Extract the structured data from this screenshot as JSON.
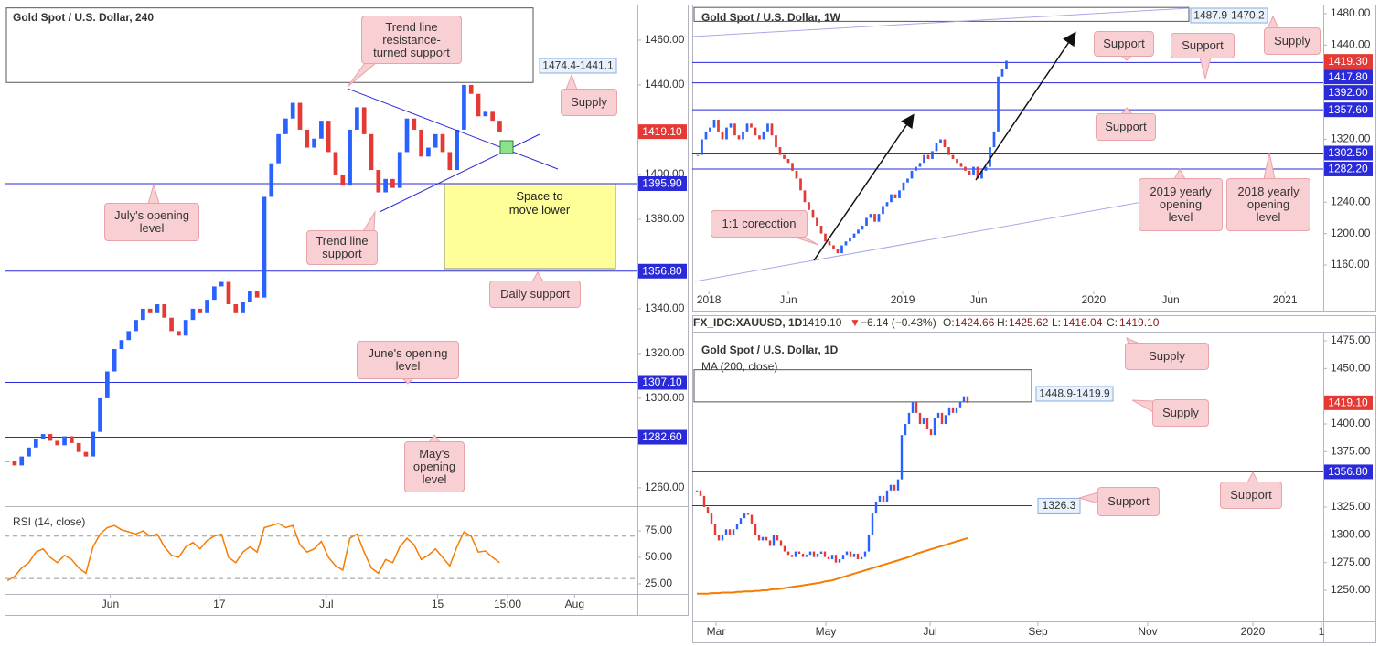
{
  "chart_data": [
    {
      "type": "candlestick",
      "title": "Gold Spot / U.S. Dollar, 240",
      "values": [
        1272,
        1270,
        1274,
        1278,
        1282,
        1284,
        1281,
        1279,
        1283,
        1280,
        1276,
        1274,
        1285,
        1300,
        1312,
        1322,
        1326,
        1330,
        1335,
        1340,
        1338,
        1342,
        1336,
        1330,
        1328,
        1335,
        1340,
        1338,
        1344,
        1350,
        1352,
        1342,
        1338,
        1343,
        1348,
        1345,
        1390,
        1405,
        1418,
        1425,
        1432,
        1420,
        1412,
        1416,
        1424,
        1410,
        1400,
        1395,
        1420,
        1430,
        1418,
        1402,
        1392,
        1398,
        1394,
        1410,
        1425,
        1420,
        1408,
        1412,
        1418,
        1410,
        1402,
        1420,
        1440,
        1436,
        1426,
        1428,
        1424,
        1419
      ],
      "up_color": "#2962ff",
      "down_color": "#e53935",
      "ylim": [
        1252.2,
        1475.9
      ],
      "yticks": [
        {
          "value": 1460,
          "label": "1460.00"
        },
        {
          "value": 1440,
          "label": "1440.00"
        },
        {
          "value": 1400,
          "label": "1400.00"
        },
        {
          "value": 1380,
          "label": "1380.00"
        },
        {
          "value": 1340,
          "label": "1340.00"
        },
        {
          "value": 1320,
          "label": "1320.00"
        },
        {
          "value": 1300,
          "label": "1300.00"
        },
        {
          "value": 1260,
          "label": "1260.00"
        }
      ],
      "xlim": [
        -0.4,
        88.3
      ],
      "xticks": [
        {
          "value": 14.4,
          "label": "Jun"
        },
        {
          "value": 29.7,
          "label": "17"
        },
        {
          "value": 44.7,
          "label": "Jul"
        },
        {
          "value": 60.3,
          "label": "15"
        },
        {
          "value": 70.1,
          "label": "15:00"
        },
        {
          "value": 79.5,
          "label": "Aug"
        }
      ],
      "level_color": "#2a2ad8",
      "levels": [
        {
          "value": 1395.9,
          "label": "1395.90"
        },
        {
          "value": 1356.8,
          "label": "1356.80"
        },
        {
          "value": 1307.1,
          "label": "1307.10"
        },
        {
          "value": 1282.6,
          "label": "1282.60"
        }
      ],
      "last_price": {
        "value": 1419.1,
        "label": "1419.10"
      },
      "zones": [
        {
          "high": 1474.4,
          "low": 1441.1,
          "label": "1474.4-1441.1"
        }
      ],
      "annotations": [
        "Trend line\nresistance-\nturned support",
        "Supply",
        "July's opening\nlevel",
        "Trend line\nsupport",
        "Daily support",
        "June's opening\nlevel",
        "May's\nopening\nlevel"
      ],
      "note": "Space to\nmove lower"
    },
    {
      "type": "line",
      "title": "RSI (14, close)",
      "values": [
        28,
        32,
        40,
        45,
        55,
        58,
        50,
        45,
        52,
        48,
        40,
        35,
        60,
        72,
        78,
        80,
        76,
        74,
        72,
        75,
        70,
        72,
        60,
        52,
        50,
        60,
        64,
        58,
        66,
        70,
        72,
        50,
        45,
        55,
        60,
        55,
        78,
        80,
        82,
        78,
        80,
        62,
        55,
        58,
        65,
        50,
        42,
        38,
        68,
        72,
        55,
        40,
        35,
        48,
        45,
        60,
        68,
        62,
        48,
        52,
        58,
        50,
        42,
        60,
        74,
        70,
        55,
        56,
        50,
        45
      ],
      "color": "#f57c00",
      "ylim": [
        15.5,
        97.4
      ],
      "yticks": [
        {
          "value": 75,
          "label": "75.00"
        },
        {
          "value": 50,
          "label": "50.00"
        },
        {
          "value": 25,
          "label": "25.00"
        }
      ],
      "levels": [
        70,
        30
      ]
    },
    {
      "type": "candlestick",
      "title": "Gold Spot / U.S. Dollar, 1W",
      "values": [
        1300,
        1320,
        1330,
        1335,
        1345,
        1330,
        1320,
        1335,
        1340,
        1325,
        1320,
        1330,
        1340,
        1335,
        1325,
        1320,
        1330,
        1340,
        1325,
        1310,
        1300,
        1295,
        1290,
        1280,
        1270,
        1255,
        1240,
        1230,
        1220,
        1210,
        1200,
        1190,
        1185,
        1180,
        1175,
        1185,
        1190,
        1195,
        1200,
        1205,
        1210,
        1220,
        1225,
        1215,
        1225,
        1235,
        1240,
        1250,
        1245,
        1255,
        1265,
        1270,
        1280,
        1285,
        1290,
        1300,
        1295,
        1305,
        1315,
        1320,
        1310,
        1300,
        1295,
        1290,
        1285,
        1280,
        1275,
        1285,
        1270,
        1280,
        1285,
        1310,
        1330,
        1400,
        1410,
        1420
      ],
      "up_color": "#2962ff",
      "down_color": "#e53935",
      "ylim": [
        1127.4,
        1491.6
      ],
      "yticks": [
        {
          "value": 1480,
          "label": "1480.00"
        },
        {
          "value": 1440,
          "label": "1440.00"
        },
        {
          "value": 1320,
          "label": "1320.00"
        },
        {
          "value": 1240,
          "label": "1240.00"
        },
        {
          "value": 1200,
          "label": "1200.00"
        },
        {
          "value": 1160,
          "label": "1160.00"
        }
      ],
      "xlim": [
        -1.33,
        152
      ],
      "xticks": [
        {
          "value": 2.7,
          "label": "2018"
        },
        {
          "value": 22,
          "label": "Jun"
        },
        {
          "value": 49.8,
          "label": "2019"
        },
        {
          "value": 68.2,
          "label": "Jun"
        },
        {
          "value": 96.2,
          "label": "2020"
        },
        {
          "value": 114.9,
          "label": "Jun"
        },
        {
          "value": 142.7,
          "label": "2021"
        }
      ],
      "level_color": "#2a2ad8",
      "levels": [
        {
          "value": 1417.8,
          "label": "1417.80"
        },
        {
          "value": 1392,
          "label": "1392.00"
        },
        {
          "value": 1357.6,
          "label": "1357.60"
        },
        {
          "value": 1302.5,
          "label": "1302.50"
        },
        {
          "value": 1282.2,
          "label": "1282.20"
        }
      ],
      "last_price": {
        "value": 1419.3,
        "label": "1419.30"
      },
      "zones": [
        {
          "high": 1487.9,
          "low": 1470.2,
          "label": "1487.9-1470.2"
        }
      ],
      "annotations": [
        "Support",
        "Support",
        "Supply",
        "Support",
        "2019 yearly\nopening\nlevel",
        "2018 yearly\nopening\nlevel",
        "1:1 corecction"
      ]
    },
    {
      "type": "candlestick",
      "title": "Gold Spot / U.S. Dollar, 1D",
      "header": {
        "symbol": "FX_IDC:XAUUSD, 1D",
        "price": "1419.10",
        "arrow": "▼",
        "change": "−6.14 (−0.43%)",
        "ohlc": [
          [
            "O:",
            "1424.66"
          ],
          [
            "H:",
            "1425.62"
          ],
          [
            "L:",
            "1416.04"
          ],
          [
            "C:",
            "1419.10"
          ]
        ]
      },
      "values": [
        1340,
        1335,
        1325,
        1320,
        1310,
        1300,
        1295,
        1300,
        1305,
        1300,
        1305,
        1310,
        1315,
        1320,
        1318,
        1310,
        1300,
        1295,
        1298,
        1295,
        1290,
        1300,
        1295,
        1290,
        1285,
        1282,
        1280,
        1285,
        1283,
        1280,
        1282,
        1285,
        1280,
        1283,
        1285,
        1280,
        1278,
        1282,
        1275,
        1278,
        1282,
        1285,
        1280,
        1283,
        1278,
        1280,
        1285,
        1300,
        1320,
        1330,
        1335,
        1330,
        1340,
        1345,
        1340,
        1350,
        1390,
        1400,
        1410,
        1420,
        1410,
        1400,
        1405,
        1395,
        1390,
        1405,
        1410,
        1400,
        1408,
        1415,
        1410,
        1415,
        1420,
        1425,
        1419.1
      ],
      "up_color": "#2962ff",
      "down_color": "#e53935",
      "indicator": {
        "name": "MA (200, close)",
        "color": "#f57c00",
        "values": [
          1247,
          1247,
          1247,
          1247,
          1247.5,
          1247.5,
          1247.5,
          1248,
          1248,
          1248,
          1248,
          1248.5,
          1248.5,
          1249,
          1249,
          1249,
          1249.5,
          1249.5,
          1250,
          1250,
          1250.5,
          1251,
          1251,
          1251.5,
          1252,
          1252.5,
          1253,
          1253.5,
          1254,
          1254.5,
          1255,
          1255.5,
          1256,
          1256.5,
          1257,
          1258,
          1258.5,
          1259,
          1260,
          1261,
          1262,
          1263,
          1264,
          1265,
          1266,
          1267,
          1268,
          1269,
          1270,
          1271,
          1272,
          1273,
          1274,
          1275,
          1276,
          1277,
          1278,
          1279,
          1280,
          1281.5,
          1283,
          1284,
          1285,
          1286,
          1287,
          1288,
          1289,
          1290,
          1291,
          1292,
          1293,
          1294,
          1295,
          1296,
          1297
        ]
      },
      "ylim": [
        1222,
        1481.6
      ],
      "yticks": [
        {
          "value": 1475,
          "label": "1475.00"
        },
        {
          "value": 1450,
          "label": "1450.00"
        },
        {
          "value": 1400,
          "label": "1400.00"
        },
        {
          "value": 1375,
          "label": "1375.00"
        },
        {
          "value": 1325,
          "label": "1325.00"
        },
        {
          "value": 1300,
          "label": "1300.00"
        },
        {
          "value": 1275,
          "label": "1275.00"
        },
        {
          "value": 1250,
          "label": "1250.00"
        }
      ],
      "xlim": [
        -1.25,
        171.25
      ],
      "xticks": [
        {
          "value": 5.25,
          "label": "Mar"
        },
        {
          "value": 35.25,
          "label": "May"
        },
        {
          "value": 63.75,
          "label": "Jul"
        },
        {
          "value": 93.25,
          "label": "Sep"
        },
        {
          "value": 123.25,
          "label": "Nov"
        },
        {
          "value": 152,
          "label": "2020"
        },
        {
          "value": 170.75,
          "label": "1"
        }
      ],
      "level_color": "#2a2ad8",
      "levels": [
        {
          "value": 1356.8,
          "label": "1356.80"
        }
      ],
      "marked_levels": [
        {
          "value": 1326.3,
          "label": "1326.3"
        }
      ],
      "last_price": {
        "value": 1419.1,
        "label": "1419.10"
      },
      "zones": [
        {
          "high": 1448.9,
          "low": 1419.9,
          "label": "1448.9-1419.9"
        }
      ],
      "annotations": [
        "Supply",
        "Supply",
        "Support",
        "Support"
      ]
    }
  ]
}
